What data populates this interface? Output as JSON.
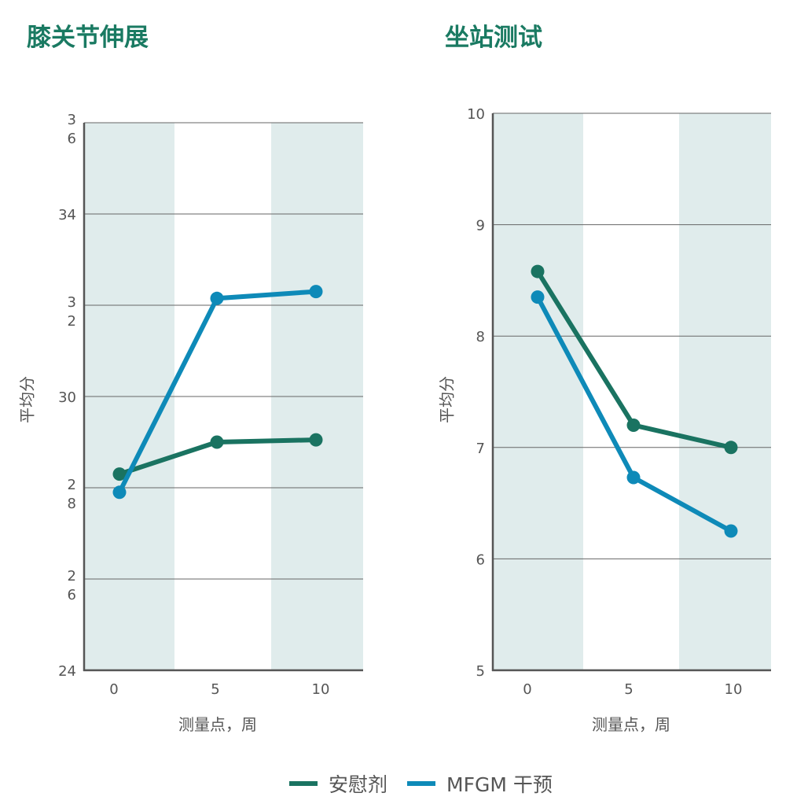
{
  "colors": {
    "placebo": "#1a7361",
    "mfgm": "#0e8ab8",
    "band": "#e0ecec",
    "title": "#1a7a62",
    "text": "#555555"
  },
  "legend": [
    {
      "name": "安慰剂",
      "color": "#1a7361"
    },
    {
      "name": "MFGM 干预",
      "color": "#0e8ab8"
    }
  ],
  "chart_data": [
    {
      "type": "line",
      "title": "膝关节伸展",
      "xlabel": "测量点，周",
      "ylabel": "平均分",
      "x": [
        0,
        5,
        10
      ],
      "x_tick_labels": [
        "0",
        "5",
        "10"
      ],
      "ylim": [
        24,
        36
      ],
      "y_ticks": [
        {
          "value": 36,
          "label": "3\n6"
        },
        {
          "value": 34,
          "label": "34"
        },
        {
          "value": 32,
          "label": "3\n2"
        },
        {
          "value": 30,
          "label": "30"
        },
        {
          "value": 28,
          "label": "2\n8"
        },
        {
          "value": 26,
          "label": "2\n6"
        },
        {
          "value": 24,
          "label": "24"
        }
      ],
      "grid": true,
      "series": [
        {
          "name": "安慰剂",
          "values": [
            28.3,
            29.0,
            29.05
          ]
        },
        {
          "name": "MFGM 干预",
          "values": [
            27.9,
            32.15,
            32.3
          ]
        }
      ]
    },
    {
      "type": "line",
      "title": "坐站测试",
      "xlabel": "测量点，周",
      "ylabel": "平均分",
      "x": [
        0,
        5,
        10
      ],
      "x_tick_labels": [
        "0",
        "5",
        "10"
      ],
      "ylim": [
        5,
        10
      ],
      "y_ticks": [
        {
          "value": 10,
          "label": "10"
        },
        {
          "value": 9,
          "label": "9"
        },
        {
          "value": 8,
          "label": "8"
        },
        {
          "value": 7,
          "label": "7"
        },
        {
          "value": 6,
          "label": "6"
        },
        {
          "value": 5,
          "label": "5"
        }
      ],
      "grid": true,
      "series": [
        {
          "name": "安慰剂",
          "values": [
            8.58,
            7.2,
            7.0
          ]
        },
        {
          "name": "MFGM 干预",
          "values": [
            8.35,
            6.73,
            6.25
          ]
        }
      ]
    }
  ]
}
